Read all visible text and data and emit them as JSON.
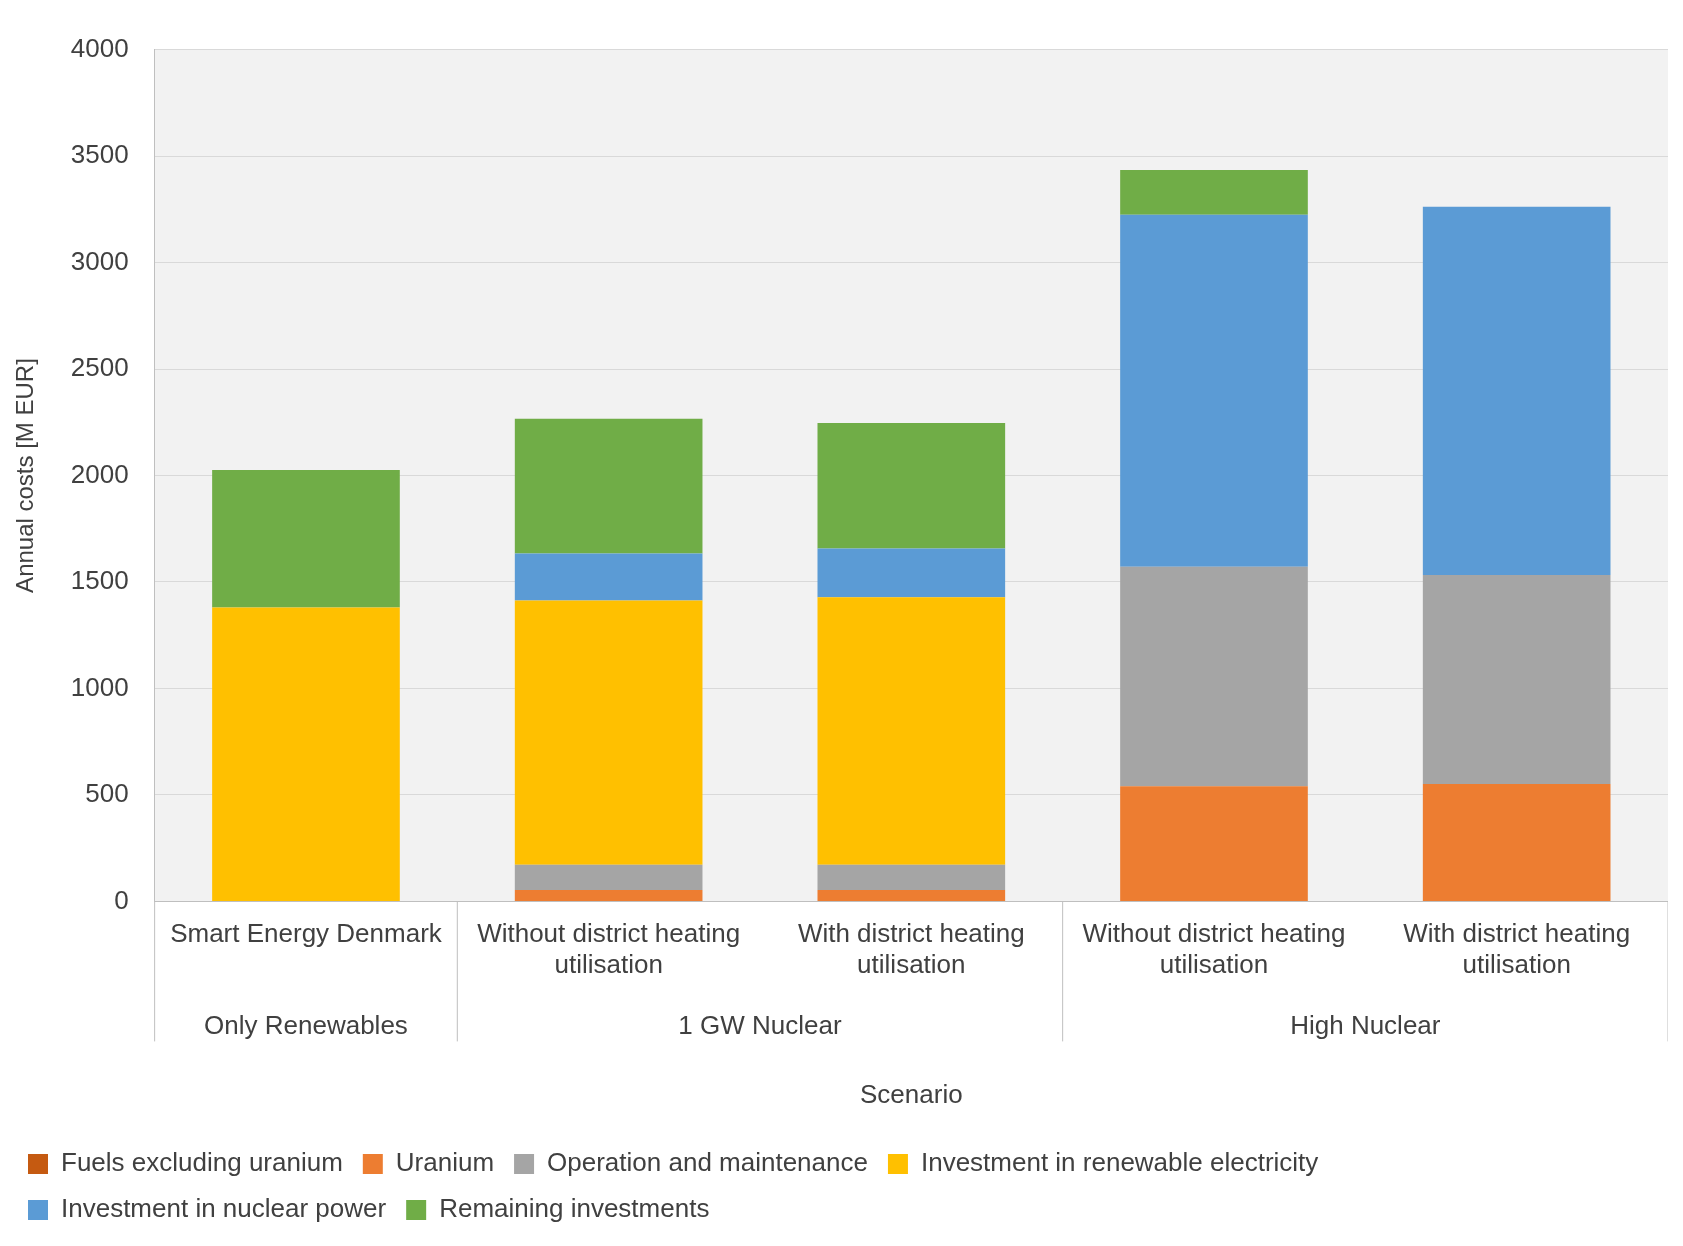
{
  "chart_data": {
    "type": "bar",
    "stacked": true,
    "xlabel": "Scenario",
    "ylabel": "Annual costs [M EUR]",
    "categories": [
      "Smart Energy Denmark",
      "Without district heating utilisation",
      "With district heating utilisation",
      "Without district heating utilisation",
      "With district heating utilisation"
    ],
    "annotations": [
      "Only Renewables",
      "1 GW Nuclear",
      "High Nuclear"
    ],
    "ylim": [
      0,
      4000
    ],
    "yticks": [
      0,
      500,
      1000,
      1500,
      2000,
      2500,
      3000,
      3500,
      4000
    ],
    "grid": "y",
    "legend": "bottom",
    "series": [
      {
        "name": "Fuels excluding uranium",
        "color": "#c55a11",
        "values": [
          0,
          0,
          0,
          0,
          0
        ]
      },
      {
        "name": "Uranium",
        "color": "#ed7d31",
        "values": [
          0,
          53,
          53,
          541,
          551
        ]
      },
      {
        "name": "Operation and maintenance",
        "color": "#a5a5a5",
        "values": [
          0,
          119,
          119,
          1030,
          982
        ]
      },
      {
        "name": "Investment in renewable electricity",
        "color": "#ffc000",
        "values": [
          1380,
          1241,
          1256,
          0,
          0
        ]
      },
      {
        "name": "Investment in nuclear power",
        "color": "#5b9bd5",
        "values": [
          0,
          221,
          229,
          1653,
          1729
        ]
      },
      {
        "name": "Remaining investments",
        "color": "#70ad47",
        "values": [
          646,
          632,
          590,
          211,
          0
        ]
      }
    ]
  }
}
